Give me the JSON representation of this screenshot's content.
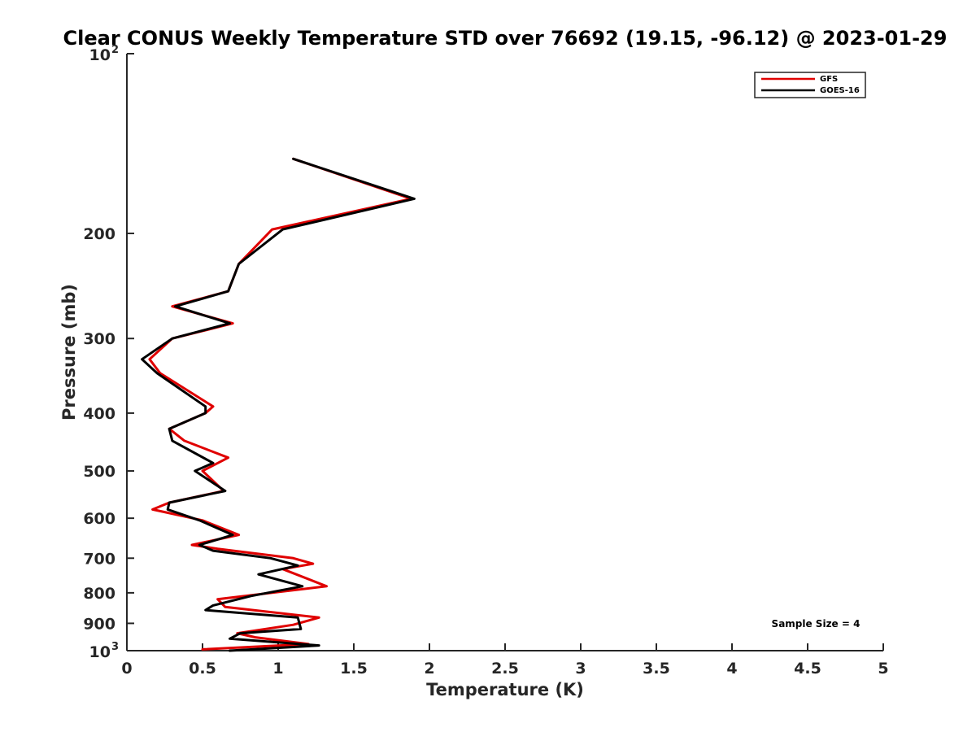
{
  "chart_data": {
    "type": "line",
    "title": "Clear CONUS Weekly Temperature STD over 76692 (19.15, -96.12) @ 2023-01-29",
    "xlabel": "Temperature (K)",
    "ylabel": "Pressure (mb)",
    "xlim": [
      0,
      5
    ],
    "ylim": [
      100,
      1000
    ],
    "y_scale": "log",
    "y_reversed": true,
    "grid": false,
    "legend_position": "top-right",
    "x_ticks": [
      0,
      0.5,
      1,
      1.5,
      2,
      2.5,
      3,
      3.5,
      4,
      4.5,
      5
    ],
    "x_tick_labels": [
      "0",
      "0.5",
      "1",
      "1.5",
      "2",
      "2.5",
      "3",
      "3.5",
      "4",
      "4.5",
      "5"
    ],
    "y_ticks": [
      {
        "value": 100,
        "label": "10",
        "exp": "2"
      },
      {
        "value": 200,
        "label": "200",
        "exp": ""
      },
      {
        "value": 300,
        "label": "300",
        "exp": ""
      },
      {
        "value": 400,
        "label": "400",
        "exp": ""
      },
      {
        "value": 500,
        "label": "500",
        "exp": ""
      },
      {
        "value": 600,
        "label": "600",
        "exp": ""
      },
      {
        "value": 700,
        "label": "700",
        "exp": ""
      },
      {
        "value": 800,
        "label": "800",
        "exp": ""
      },
      {
        "value": 900,
        "label": "900",
        "exp": ""
      },
      {
        "value": 1000,
        "label": "10",
        "exp": "3"
      }
    ],
    "annotation": "Sample Size = 4",
    "series": [
      {
        "name": "GFS",
        "color": "#e00000",
        "points": [
          [
            1.1,
            150
          ],
          [
            1.88,
            175
          ],
          [
            0.96,
            197
          ],
          [
            0.74,
            225
          ],
          [
            0.67,
            250
          ],
          [
            0.3,
            265
          ],
          [
            0.7,
            283
          ],
          [
            0.3,
            300
          ],
          [
            0.15,
            325
          ],
          [
            0.22,
            343
          ],
          [
            0.57,
            390
          ],
          [
            0.52,
            400
          ],
          [
            0.28,
            425
          ],
          [
            0.38,
            445
          ],
          [
            0.67,
            475
          ],
          [
            0.5,
            500
          ],
          [
            0.64,
            540
          ],
          [
            0.28,
            565
          ],
          [
            0.17,
            580
          ],
          [
            0.5,
            605
          ],
          [
            0.74,
            640
          ],
          [
            0.43,
            665
          ],
          [
            0.6,
            675
          ],
          [
            1.1,
            700
          ],
          [
            1.23,
            715
          ],
          [
            1.03,
            730
          ],
          [
            1.32,
            780
          ],
          [
            0.6,
            820
          ],
          [
            0.65,
            845
          ],
          [
            1.27,
            880
          ],
          [
            1.1,
            905
          ],
          [
            0.73,
            935
          ],
          [
            0.85,
            950
          ],
          [
            1.2,
            975
          ],
          [
            0.5,
            995
          ]
        ]
      },
      {
        "name": "GOES-16",
        "color": "#000000",
        "points": [
          [
            1.1,
            150
          ],
          [
            1.9,
            175
          ],
          [
            1.03,
            197
          ],
          [
            0.74,
            225
          ],
          [
            0.67,
            250
          ],
          [
            0.32,
            265
          ],
          [
            0.68,
            283
          ],
          [
            0.3,
            300
          ],
          [
            0.1,
            325
          ],
          [
            0.2,
            343
          ],
          [
            0.52,
            390
          ],
          [
            0.52,
            400
          ],
          [
            0.28,
            425
          ],
          [
            0.3,
            445
          ],
          [
            0.57,
            485
          ],
          [
            0.45,
            500
          ],
          [
            0.65,
            540
          ],
          [
            0.28,
            565
          ],
          [
            0.27,
            580
          ],
          [
            0.48,
            605
          ],
          [
            0.7,
            640
          ],
          [
            0.48,
            665
          ],
          [
            0.57,
            680
          ],
          [
            0.95,
            700
          ],
          [
            1.13,
            720
          ],
          [
            0.87,
            745
          ],
          [
            1.16,
            780
          ],
          [
            0.82,
            810
          ],
          [
            0.57,
            840
          ],
          [
            0.52,
            855
          ],
          [
            1.13,
            880
          ],
          [
            1.15,
            920
          ],
          [
            0.75,
            935
          ],
          [
            0.68,
            955
          ],
          [
            1.27,
            980
          ],
          [
            0.68,
            1000
          ]
        ]
      }
    ]
  }
}
